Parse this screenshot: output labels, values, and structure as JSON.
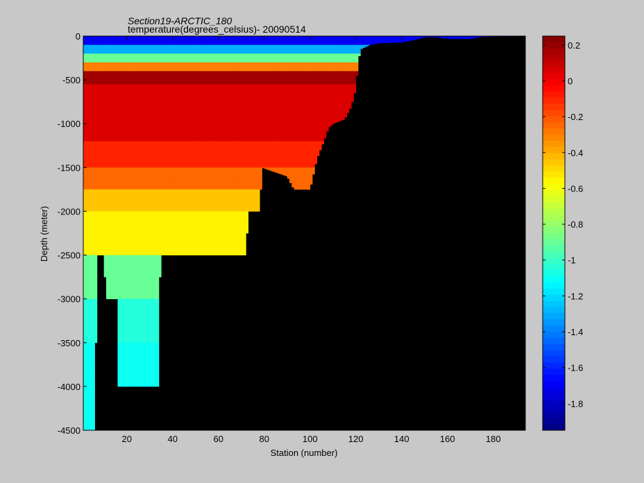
{
  "chart_data": {
    "type": "heatmap",
    "title": "Section19-ARCTIC_180",
    "subtitle": "temperature(degrees_celsius)- 20090514",
    "xlabel": "Station (number)",
    "ylabel": "Depth (meter)",
    "xlim": [
      1,
      194
    ],
    "ylim": [
      -4500,
      0
    ],
    "x_ticks": [
      20,
      40,
      60,
      80,
      100,
      120,
      140,
      160,
      180
    ],
    "y_ticks": [
      0,
      -500,
      -1000,
      -1500,
      -2000,
      -2500,
      -3000,
      -3500,
      -4000,
      -4500
    ],
    "colorbar": {
      "min": -1.95,
      "max": 0.25,
      "ticks": [
        0.2,
        0,
        -0.2,
        -0.4,
        -0.6,
        -0.8,
        -1,
        -1.2,
        -1.4,
        -1.6,
        -1.8
      ],
      "colormap": "jet"
    },
    "bottom_depth_profile": [
      [
        1,
        -4500
      ],
      [
        6,
        -4500
      ],
      [
        7,
        -2500
      ],
      [
        10,
        -2500
      ],
      [
        11,
        -3000
      ],
      [
        16,
        -3000
      ],
      [
        16,
        -4000
      ],
      [
        34,
        -4000
      ],
      [
        34,
        -3000
      ],
      [
        35,
        -2500
      ],
      [
        65,
        -2500
      ],
      [
        72,
        -2500
      ],
      [
        73,
        -2000
      ],
      [
        78,
        -2000
      ],
      [
        79,
        -1500
      ],
      [
        90,
        -1600
      ],
      [
        93,
        -1750
      ],
      [
        100,
        -1750
      ],
      [
        103,
        -1400
      ],
      [
        106,
        -1200
      ],
      [
        108,
        -1050
      ],
      [
        110,
        -1000
      ],
      [
        115,
        -950
      ],
      [
        118,
        -800
      ],
      [
        120,
        -600
      ],
      [
        121,
        -300
      ],
      [
        122,
        -150
      ],
      [
        126,
        -100
      ],
      [
        130,
        -80
      ],
      [
        140,
        -70
      ],
      [
        146,
        -40
      ],
      [
        150,
        -10
      ],
      [
        155,
        -10
      ],
      [
        160,
        -30
      ],
      [
        170,
        -30
      ],
      [
        175,
        -5
      ],
      [
        194,
        0
      ]
    ],
    "layers": [
      {
        "depth_top": 0,
        "depth_bottom": 100,
        "temperature": -1.7
      },
      {
        "depth_top": 100,
        "depth_bottom": 200,
        "temperature": -1.3
      },
      {
        "depth_top": 200,
        "depth_bottom": 260,
        "temperature": -0.9
      },
      {
        "depth_top": 260,
        "depth_bottom": 380,
        "temperature": -0.3
      },
      {
        "depth_top": 380,
        "depth_bottom": 550,
        "temperature": 0.18
      },
      {
        "depth_top": 550,
        "depth_bottom": 1200,
        "temperature": 0.05
      },
      {
        "depth_top": 1200,
        "depth_bottom": 1500,
        "temperature": -0.1
      },
      {
        "depth_top": 1500,
        "depth_bottom": 1750,
        "temperature": -0.25
      },
      {
        "depth_top": 1750,
        "depth_bottom": 2000,
        "temperature": -0.45
      },
      {
        "depth_top": 2000,
        "depth_bottom": 2500,
        "temperature": -0.55
      },
      {
        "depth_top": 2500,
        "depth_bottom": 3000,
        "temperature": -0.9
      },
      {
        "depth_top": 3000,
        "depth_bottom": 3500,
        "temperature": -1.05
      },
      {
        "depth_top": 3500,
        "depth_bottom": 4000,
        "temperature": -1.1
      },
      {
        "depth_top": 4000,
        "depth_bottom": 4500,
        "temperature": -1.1
      }
    ],
    "grid": false
  }
}
